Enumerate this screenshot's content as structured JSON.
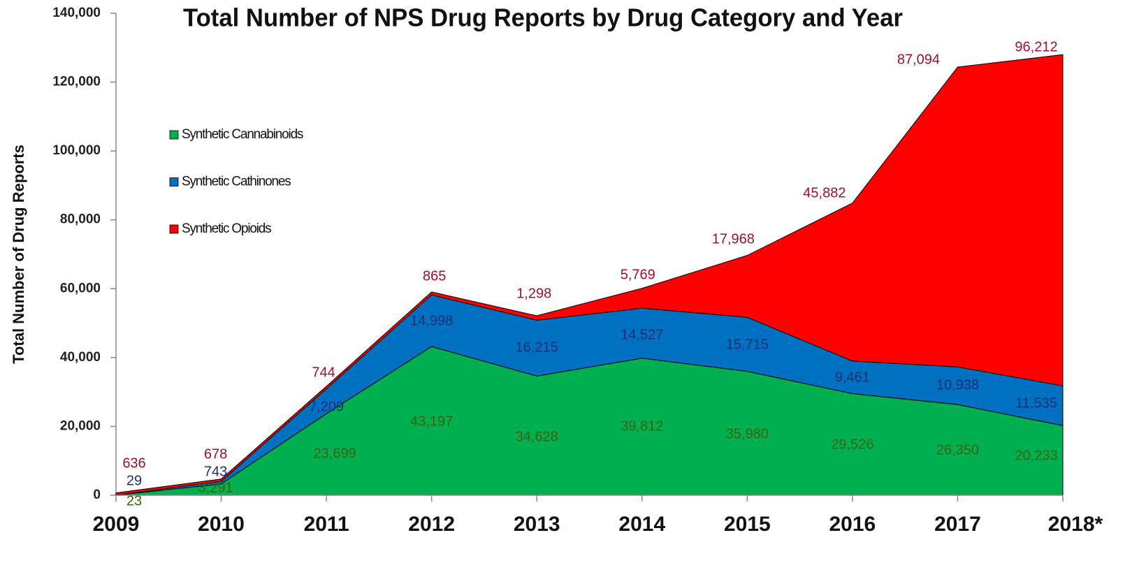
{
  "chart_data": {
    "type": "stacked-area",
    "title": "Total Number of NPS Drug Reports by Drug Category and Year",
    "y_label": "Total Number of Drug Reports",
    "categories": [
      "2009",
      "2010",
      "2011",
      "2012",
      "2013",
      "2014",
      "2015",
      "2016",
      "2017",
      "2018*"
    ],
    "series": [
      {
        "name": "Synthetic Cannabinoids",
        "color": "#00b050",
        "values": [
          23,
          3291,
          23699,
          43197,
          34628,
          39812,
          35980,
          29526,
          26350,
          20233
        ],
        "value_labels": [
          "23",
          "3,291",
          "23,699",
          "43,197",
          "34,628",
          "39,812",
          "35,980",
          "29,526",
          "26,350",
          "20,233"
        ]
      },
      {
        "name": "Synthetic Cathinones",
        "color": "#0070c0",
        "values": [
          29,
          743,
          7209,
          14998,
          16215,
          14527,
          15715,
          9461,
          10938,
          11535
        ],
        "value_labels": [
          "29",
          "743",
          "7,209",
          "14,998",
          "16,215",
          "14,527",
          "15,715",
          "9,461",
          "10,938",
          "11,535"
        ]
      },
      {
        "name": "Synthetic Opioids",
        "color": "#ff0000",
        "values": [
          636,
          678,
          744,
          865,
          1298,
          5769,
          17968,
          45882,
          87094,
          96212
        ],
        "value_labels": [
          "636",
          "678",
          "744",
          "865",
          "1,298",
          "5,769",
          "17,968",
          "45,882",
          "87,094",
          "96,212"
        ]
      }
    ],
    "ylim": [
      0,
      140000
    ],
    "yticks": [
      0,
      {
        "value": 20000,
        "label": "20,000"
      },
      {
        "value": 40000,
        "label": "40,000"
      },
      {
        "value": 60000,
        "label": "60,000"
      },
      {
        "value": 80000,
        "label": "80,000"
      },
      {
        "value": 100000,
        "label": "100,000"
      },
      {
        "value": 120000,
        "label": "120,000"
      },
      {
        "value": 140000,
        "label": "140,000"
      }
    ],
    "legend": "upper-left"
  }
}
